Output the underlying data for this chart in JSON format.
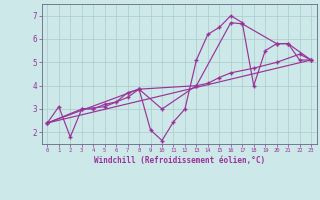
{
  "xlabel": "Windchill (Refroidissement éolien,°C)",
  "bg_color": "#cce8e8",
  "line_color": "#993399",
  "grid_color": "#aacccc",
  "xlim": [
    -0.5,
    23.5
  ],
  "ylim": [
    1.5,
    7.5
  ],
  "xticks": [
    0,
    1,
    2,
    3,
    4,
    5,
    6,
    7,
    8,
    9,
    10,
    11,
    12,
    13,
    14,
    15,
    16,
    17,
    18,
    19,
    20,
    21,
    22,
    23
  ],
  "yticks": [
    2,
    3,
    4,
    5,
    6,
    7
  ],
  "series1_x": [
    0,
    1,
    2,
    3,
    4,
    5,
    6,
    7,
    8,
    9,
    10,
    11,
    12,
    13,
    14,
    15,
    16,
    17,
    18,
    19,
    20,
    21,
    22,
    23
  ],
  "series1_y": [
    2.4,
    3.1,
    1.8,
    3.0,
    3.0,
    3.2,
    3.3,
    3.7,
    3.85,
    2.1,
    1.65,
    2.45,
    3.0,
    5.1,
    6.2,
    6.5,
    7.0,
    6.7,
    4.0,
    5.5,
    5.8,
    5.8,
    5.1,
    5.1
  ],
  "series2_x": [
    0,
    3,
    5,
    7,
    8,
    10,
    13,
    14,
    15,
    16,
    18,
    20,
    22,
    23
  ],
  "series2_y": [
    2.4,
    3.0,
    3.1,
    3.5,
    3.85,
    3.0,
    4.0,
    4.1,
    4.35,
    4.55,
    4.75,
    5.0,
    5.35,
    5.1
  ],
  "series3_x": [
    0,
    23
  ],
  "series3_y": [
    2.4,
    5.1
  ],
  "series4_x": [
    0,
    8,
    13,
    16,
    17,
    20,
    21,
    23
  ],
  "series4_y": [
    2.4,
    3.85,
    4.0,
    6.7,
    6.65,
    5.8,
    5.8,
    5.1
  ]
}
